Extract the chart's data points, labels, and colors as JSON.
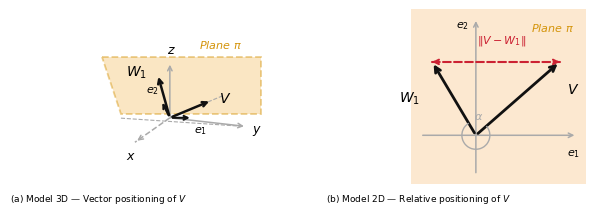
{
  "bg_color_right": "#fce8d0",
  "plane_fill": "#f5c97a",
  "plane_alpha": 0.45,
  "orange_color": "#d4940a",
  "red_color": "#cc2233",
  "black_color": "#111111",
  "gray_color": "#aaaaaa",
  "plane_label": "Plane $\\pi$",
  "W1_label": "$W_1$",
  "V_label": "$V$",
  "e1_label": "$e_1$",
  "e2_label": "$e_2$",
  "z_label": "$z$",
  "x_label": "$x$",
  "y_label": "$y$",
  "alpha_label": "$\\alpha$",
  "norm_label": "$\\|V - W_1\\|$",
  "cap_left": "(a) Model 3D — Vector positioning of $V$",
  "cap_right": "(b) Model 2D — Relative positioning of $V$"
}
